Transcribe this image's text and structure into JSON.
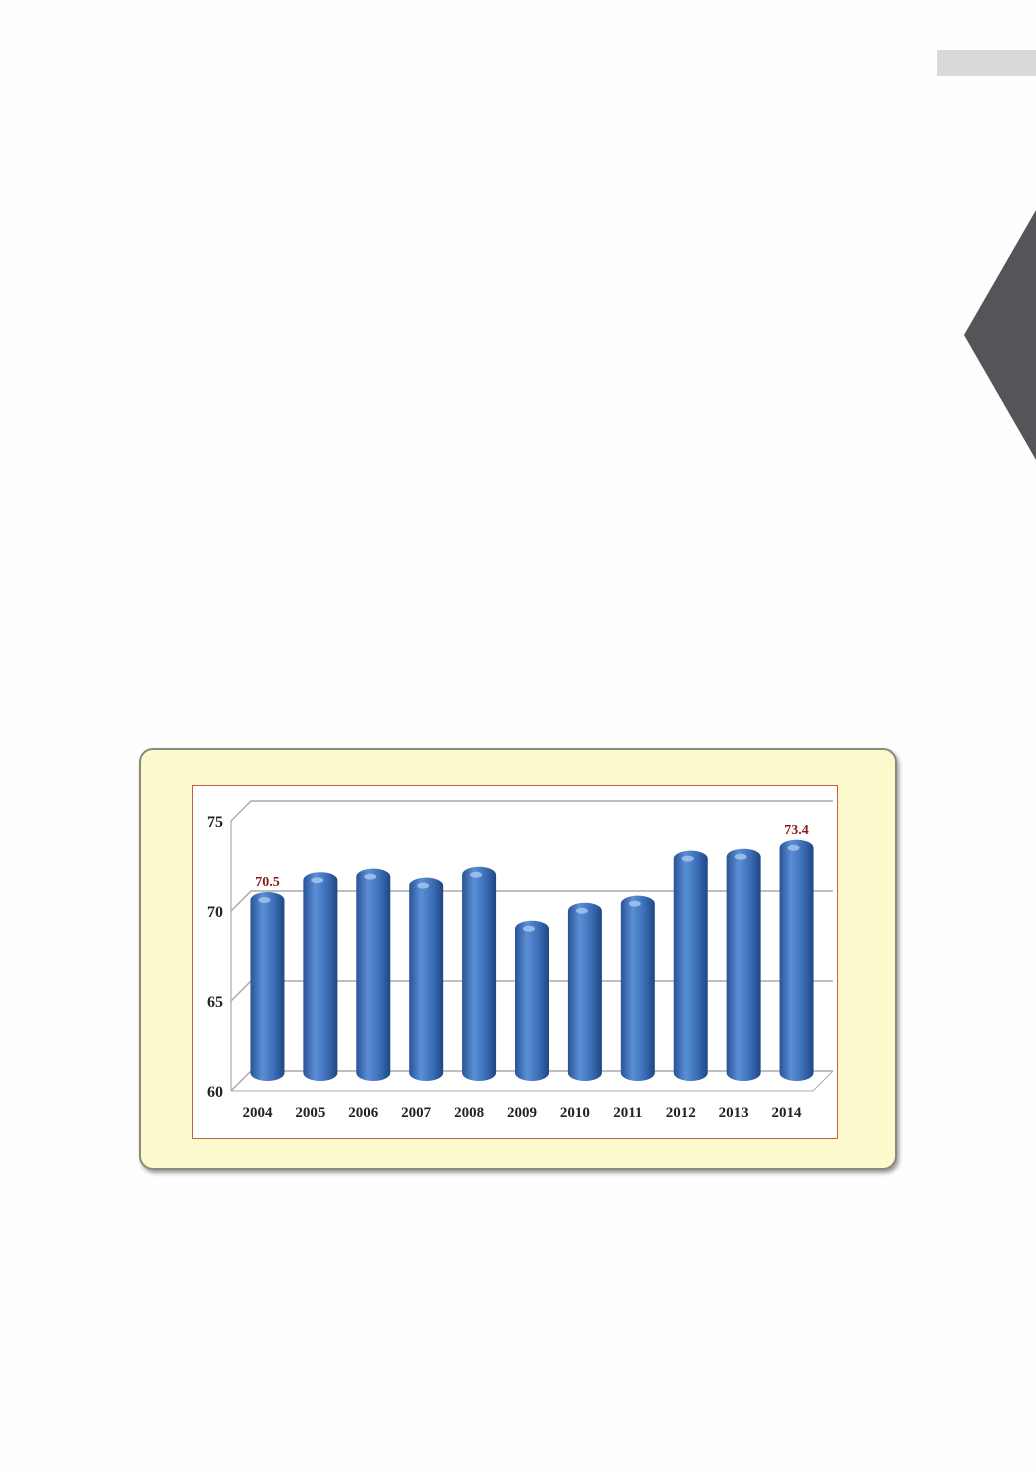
{
  "chart_data": {
    "type": "bar",
    "categories": [
      "2004",
      "2005",
      "2006",
      "2007",
      "2008",
      "2009",
      "2010",
      "2011",
      "2012",
      "2013",
      "2014"
    ],
    "values": [
      70.5,
      71.6,
      71.8,
      71.3,
      71.9,
      68.9,
      69.9,
      70.3,
      72.8,
      72.9,
      73.4
    ],
    "data_labels": {
      "2004": "70.5",
      "2014": "73.4"
    },
    "yticks": [
      "60",
      "65",
      "70",
      "75"
    ],
    "ylim": [
      60,
      75
    ],
    "grid": true,
    "style": "3d-cylinder",
    "colors": {
      "bar": "#3a6db5",
      "label": "#8b1a1a",
      "card": "#fcf9cc",
      "frame": "#c0604a"
    }
  }
}
